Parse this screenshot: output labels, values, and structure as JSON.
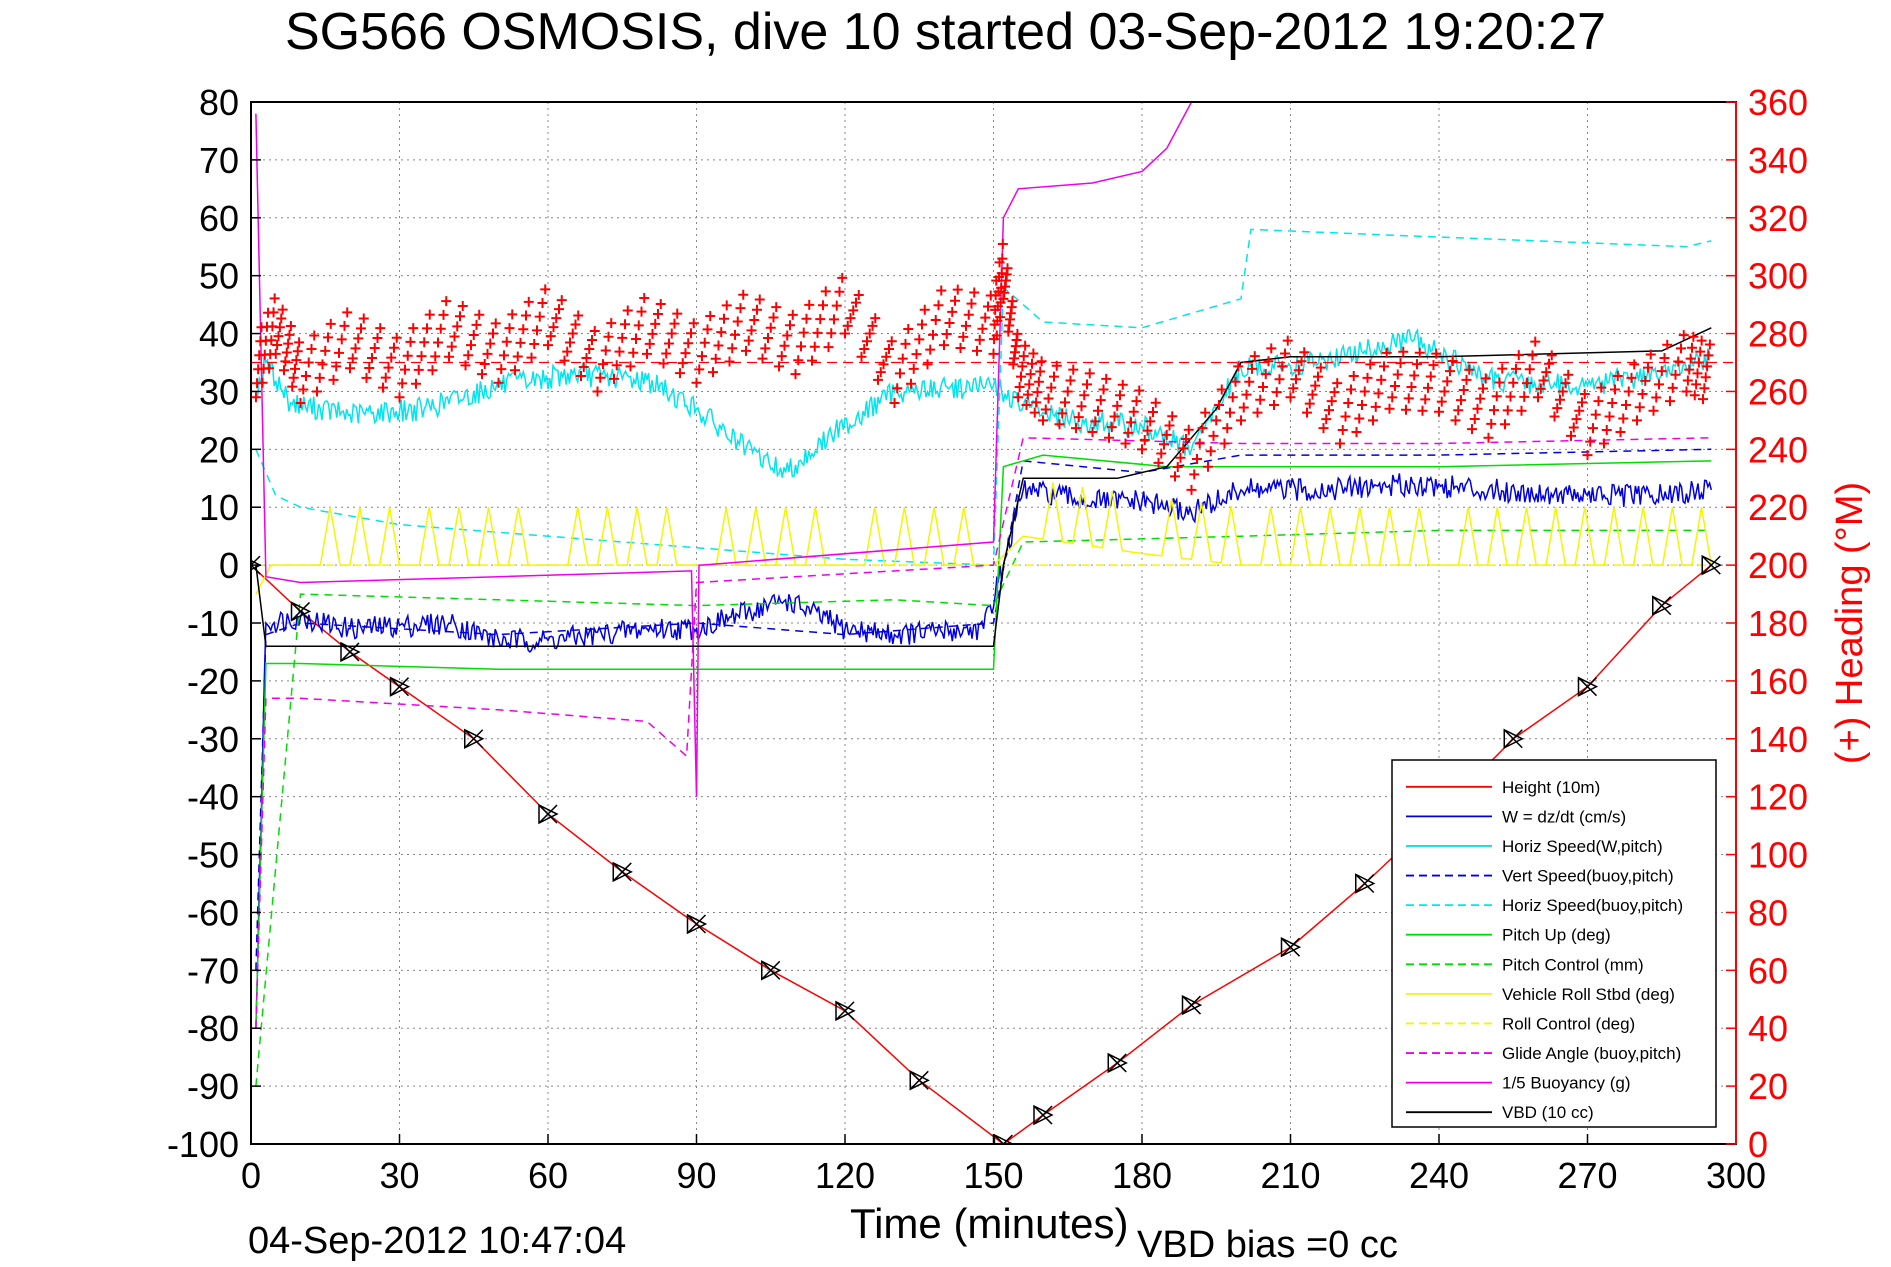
{
  "chart_data": {
    "type": "line",
    "title": "SG566 OSMOSIS, dive 10 started 03-Sep-2012 19:20:27",
    "xlabel": "Time (minutes)",
    "ylabel_right": "(+) Heading (°M)",
    "footer_date": "04-Sep-2012 10:47:04",
    "footer_vbd": "VBD bias =0 cc",
    "xlim": [
      0,
      300
    ],
    "ylim_left": [
      -100,
      80
    ],
    "ylim_right": [
      0,
      360
    ],
    "xticks": [
      0,
      30,
      60,
      90,
      120,
      150,
      180,
      210,
      240,
      270,
      300
    ],
    "yticks_left": [
      80,
      70,
      60,
      50,
      40,
      30,
      20,
      10,
      0,
      -10,
      -20,
      -30,
      -40,
      -50,
      -60,
      -70,
      -80,
      -90,
      -100
    ],
    "yticks_right": [
      360,
      340,
      320,
      300,
      280,
      260,
      240,
      220,
      200,
      180,
      160,
      140,
      120,
      100,
      80,
      60,
      40,
      20,
      0
    ],
    "grid": true,
    "legend_position": "bottom-right",
    "colors": {
      "right_axis": "#ff0000",
      "height": "#ff0000",
      "w": "#0000e0",
      "horiz_speed": "#00e5ee",
      "pitch": "#00dd00",
      "roll": "#f5f500",
      "glide": "#ee00ee",
      "vbd": "#000000"
    },
    "series": [
      {
        "name": "Height (10m)",
        "style": "solid",
        "color": "#ff0000",
        "x": [
          0,
          10,
          20,
          30,
          45,
          60,
          75,
          90,
          105,
          120,
          135,
          152,
          160,
          175,
          190,
          210,
          225,
          240,
          255,
          270,
          285,
          295
        ],
        "y": [
          0,
          -8,
          -15,
          -21,
          -30,
          -43,
          -53,
          -62,
          -70,
          -77,
          -89,
          -100,
          -95,
          -86,
          -76,
          -66,
          -55,
          -43,
          -30,
          -21,
          -7,
          0
        ]
      },
      {
        "name": "W = dz/dt (cm/s)",
        "style": "solid",
        "color": "#0000e0",
        "x": [
          1,
          3,
          10,
          20,
          40,
          50,
          60,
          80,
          90,
          108,
          120,
          130,
          148,
          152,
          156,
          170,
          180,
          190,
          200,
          215,
          235,
          250,
          270,
          285,
          295
        ],
        "y": [
          -80,
          -10,
          -9,
          -11,
          -10,
          -13,
          -13,
          -11,
          -11,
          -6,
          -11,
          -12,
          -11,
          0,
          13,
          11,
          11,
          9,
          13,
          13,
          14,
          13,
          12,
          12,
          13
        ]
      },
      {
        "name": "Horiz Speed(W,pitch)",
        "style": "solid",
        "color": "#00e5ee",
        "x": [
          1,
          3,
          8,
          20,
          35,
          50,
          65,
          80,
          90,
          100,
          108,
          118,
          130,
          150,
          155,
          165,
          180,
          190,
          200,
          215,
          235,
          250,
          270,
          290,
          295
        ],
        "y": [
          30,
          35,
          28,
          26,
          27,
          31,
          33,
          32,
          27,
          20,
          16,
          23,
          30,
          31,
          28,
          25,
          24,
          20,
          34,
          35,
          39,
          32,
          31,
          34,
          36
        ]
      },
      {
        "name": "Vert Speed(buoy,pitch)",
        "style": "dashed",
        "color": "#0000e0",
        "x": [
          1,
          3,
          10,
          50,
          90,
          120,
          150,
          156,
          180,
          200,
          240,
          295
        ],
        "y": [
          -70,
          -12,
          -10,
          -12,
          -10,
          -12,
          -10,
          18,
          16,
          19,
          19,
          20
        ]
      },
      {
        "name": "Horiz Speed(buoy,pitch)",
        "style": "dashed",
        "color": "#00e5ee",
        "x": [
          1,
          5,
          10,
          30,
          60,
          90,
          120,
          150,
          152,
          160,
          180,
          200,
          202,
          230,
          260,
          290,
          295
        ],
        "y": [
          20,
          12,
          10,
          7,
          5,
          3,
          1,
          0,
          48,
          42,
          41,
          46,
          58,
          57,
          56,
          55,
          56
        ]
      },
      {
        "name": "Pitch Up (deg)",
        "style": "solid",
        "color": "#00dd00",
        "x": [
          1,
          3,
          10,
          50,
          90,
          130,
          150,
          152,
          160,
          185,
          200,
          240,
          295
        ],
        "y": [
          -80,
          -17,
          -17,
          -18,
          -18,
          -18,
          -18,
          17,
          19,
          17,
          17,
          17,
          18
        ]
      },
      {
        "name": "Pitch Control (mm)",
        "style": "dashed",
        "color": "#00dd00",
        "x": [
          1,
          10,
          50,
          90,
          130,
          150,
          156,
          200,
          240,
          295
        ],
        "y": [
          -90,
          -5,
          -6,
          -7,
          -6,
          -7,
          4,
          5,
          6,
          6
        ]
      },
      {
        "name": "Vehicle Roll Stbd (deg)",
        "style": "solid",
        "color": "#f5f500",
        "x": [
          1,
          4,
          10,
          30,
          60,
          90,
          120,
          150,
          156,
          180,
          200,
          240,
          295
        ],
        "y": [
          -5,
          0,
          0,
          0,
          0,
          0,
          0,
          0,
          5,
          2,
          0,
          0,
          0
        ]
      },
      {
        "name": "Roll Control (deg)",
        "style": "dashed",
        "color": "#f5f500",
        "x": [
          1,
          10,
          150,
          200,
          295
        ],
        "y": [
          0,
          0,
          0,
          0,
          0
        ]
      },
      {
        "name": "Glide Angle (buoy,pitch)",
        "style": "dashed",
        "color": "#ee00ee",
        "x": [
          1,
          3,
          10,
          50,
          80,
          88,
          90,
          150,
          156,
          200,
          240,
          295
        ],
        "y": [
          -80,
          -23,
          -23,
          -25,
          -27,
          -33,
          -3,
          0,
          22,
          21,
          21,
          22
        ]
      },
      {
        "name": "1/5 Buoyancy (g)",
        "style": "solid",
        "color": "#ee00ee",
        "x": [
          1,
          3,
          10,
          50,
          89,
          90,
          90.5,
          91,
          150,
          152,
          155,
          170,
          180,
          185,
          190
        ],
        "y": [
          78,
          -2,
          -3,
          -2,
          -1,
          -40,
          0,
          0,
          4,
          60,
          65,
          66,
          68,
          72,
          80
        ]
      },
      {
        "name": "VBD (10 cc)",
        "style": "solid",
        "color": "#000000",
        "x": [
          1,
          3,
          10,
          150,
          152,
          156,
          175,
          185,
          195,
          200,
          210,
          240,
          285,
          295
        ],
        "y": [
          0,
          -14,
          -14,
          -14,
          0,
          15,
          15,
          17,
          27,
          35,
          36,
          36,
          37,
          41
        ]
      },
      {
        "name": "Heading",
        "axis": "right",
        "style": "markers",
        "color": "#ff0000",
        "x": [
          1,
          5,
          10,
          20,
          30,
          40,
          50,
          60,
          70,
          80,
          90,
          100,
          110,
          120,
          130,
          140,
          150,
          152,
          155,
          160,
          170,
          180,
          190,
          200,
          210,
          220,
          230,
          240,
          250,
          260,
          270,
          280,
          290,
          295
        ],
        "y": [
          270,
          285,
          268,
          280,
          270,
          284,
          275,
          288,
          272,
          285,
          275,
          286,
          278,
          292,
          268,
          288,
          285,
          304,
          270,
          262,
          258,
          252,
          238,
          262,
          270,
          254,
          266,
          265,
          256,
          270,
          250,
          262,
          272,
          268
        ]
      }
    ]
  }
}
